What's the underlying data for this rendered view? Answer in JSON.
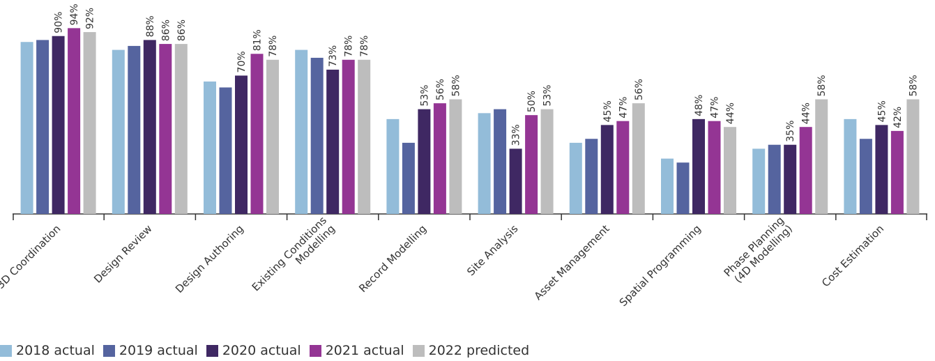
{
  "chart_data": {
    "type": "bar",
    "categories": [
      "3D Coordination",
      "Design Review",
      "Design Authoring",
      "Existing Conditions\nModelling",
      "Record Modelling",
      "Site Analysis",
      "Asset Management",
      "Spatial Programming",
      "Phase Planning\n(4D Modelling)",
      "Cost Estimation"
    ],
    "series": [
      {
        "name": "2018 actual",
        "color": "#93bcd9",
        "values": [
          87,
          83,
          67,
          83,
          48,
          51,
          36,
          28,
          33,
          48
        ]
      },
      {
        "name": "2019 actual",
        "color": "#55649f",
        "values": [
          88,
          85,
          64,
          79,
          36,
          53,
          38,
          26,
          35,
          38
        ]
      },
      {
        "name": "2020 actual",
        "color": "#3f2863",
        "values": [
          90,
          88,
          70,
          73,
          53,
          33,
          45,
          48,
          35,
          45
        ]
      },
      {
        "name": "2021 actual",
        "color": "#943594",
        "values": [
          94,
          86,
          81,
          78,
          56,
          50,
          47,
          47,
          44,
          42
        ]
      },
      {
        "name": "2022 predicted",
        "color": "#bdbdbd",
        "values": [
          92,
          86,
          78,
          78,
          58,
          53,
          56,
          44,
          58,
          58
        ]
      }
    ],
    "data_labels": [
      [
        "",
        "",
        "90%",
        "94%",
        "92%"
      ],
      [
        "",
        "",
        "88%",
        "86%",
        "86%"
      ],
      [
        "",
        "",
        "70%",
        "81%",
        "78%"
      ],
      [
        "",
        "",
        "73%",
        "78%",
        "78%"
      ],
      [
        "",
        "",
        "53%",
        "56%",
        "58%"
      ],
      [
        "",
        "",
        "33%",
        "50%",
        "53%"
      ],
      [
        "",
        "",
        "45%",
        "47%",
        "56%"
      ],
      [
        "",
        "",
        "48%",
        "47%",
        "44%"
      ],
      [
        "",
        "",
        "35%",
        "44%",
        "58%"
      ],
      [
        "",
        "",
        "45%",
        "42%",
        "58%"
      ]
    ],
    "ylim": [
      0,
      100
    ],
    "grid": false,
    "legend_position": "bottom-left"
  }
}
